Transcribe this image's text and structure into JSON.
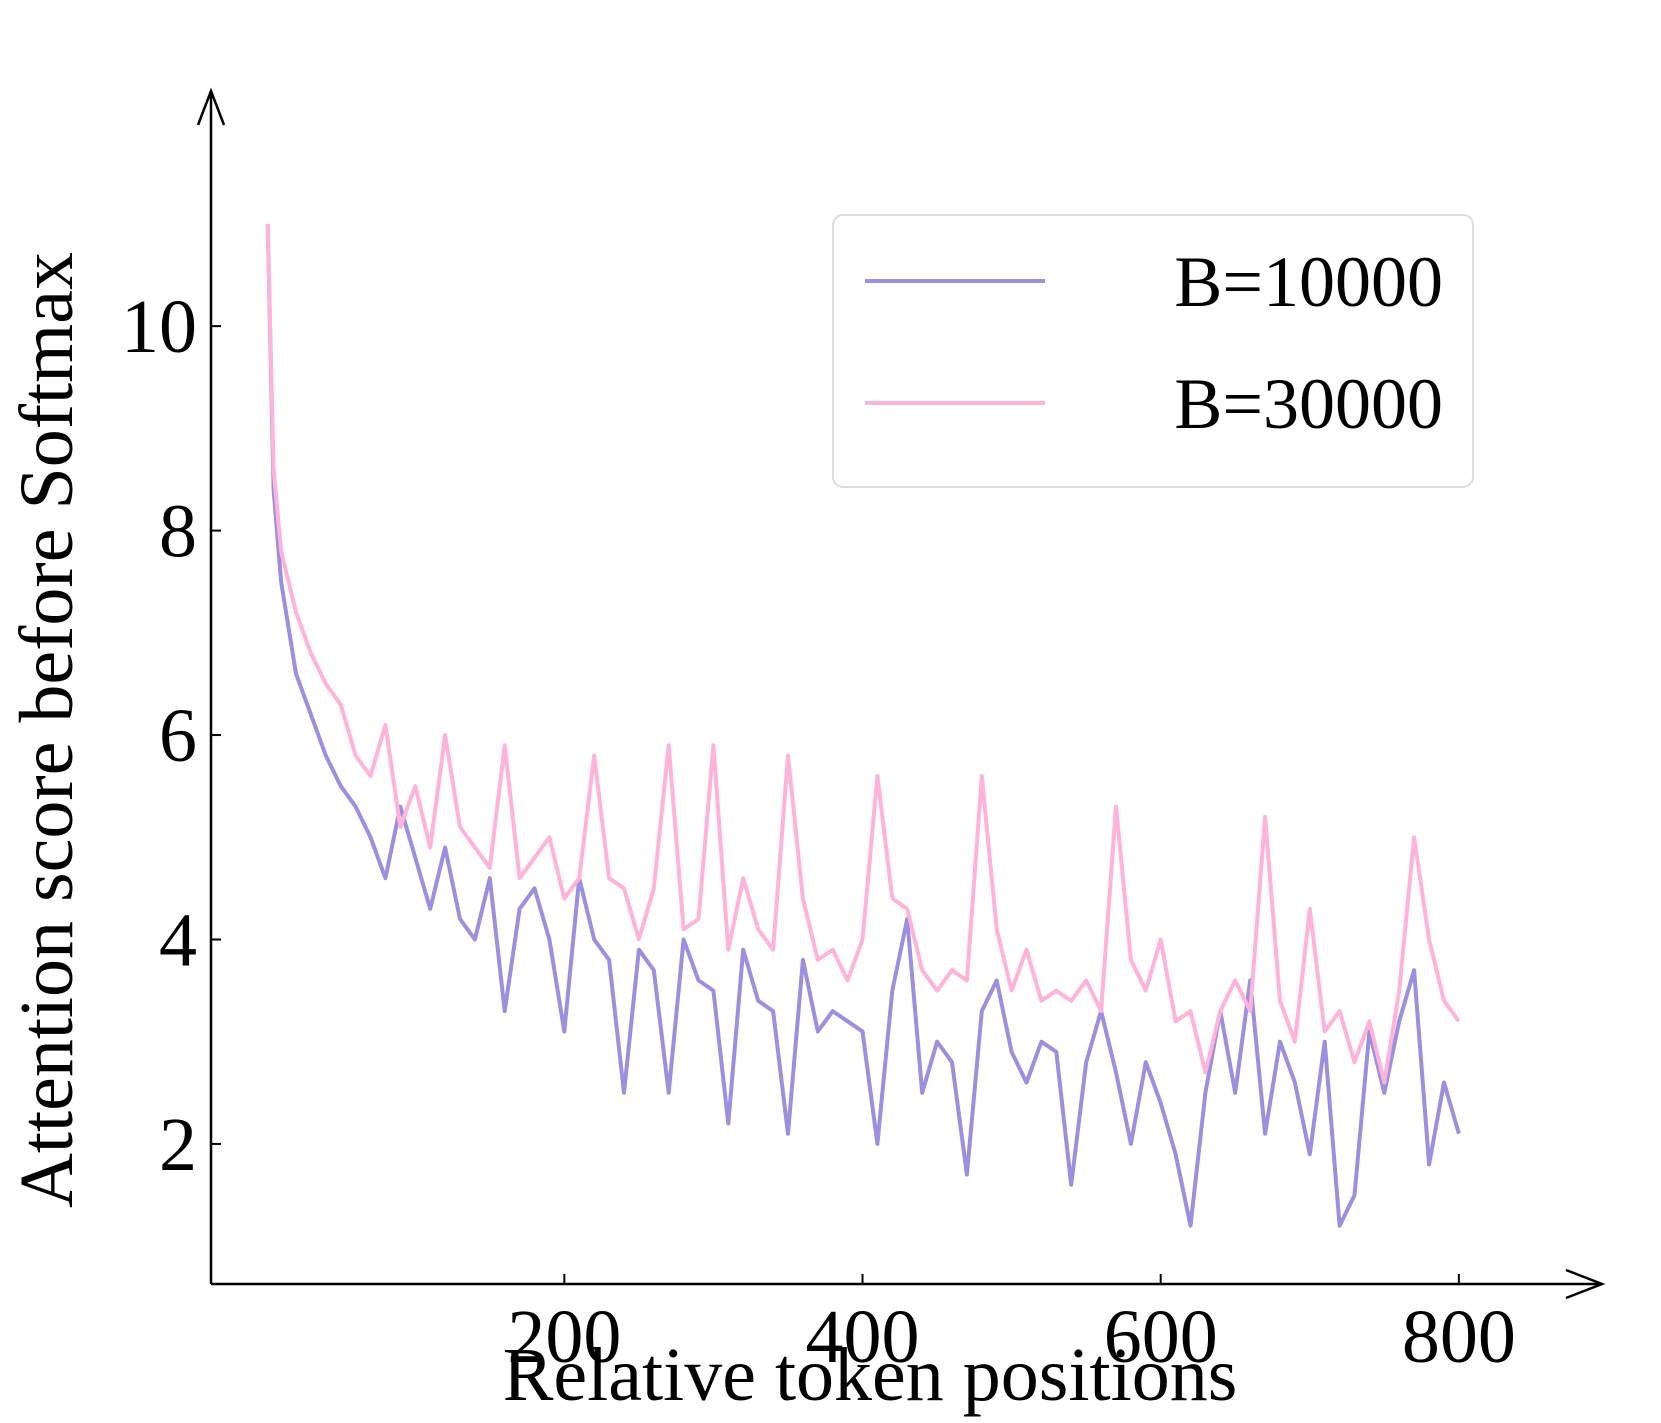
{
  "chart_data": {
    "type": "line",
    "xlabel": "Relative token positions",
    "ylabel": "Attention score before Softmax",
    "x": [
      1,
      5,
      10,
      20,
      30,
      40,
      50,
      60,
      70,
      80,
      90,
      100,
      110,
      120,
      130,
      140,
      150,
      160,
      170,
      180,
      190,
      200,
      210,
      220,
      230,
      240,
      250,
      260,
      270,
      280,
      290,
      300,
      310,
      320,
      330,
      340,
      350,
      360,
      370,
      380,
      390,
      400,
      410,
      420,
      430,
      440,
      450,
      460,
      470,
      480,
      490,
      500,
      510,
      520,
      530,
      540,
      550,
      560,
      570,
      580,
      590,
      600,
      610,
      620,
      630,
      640,
      650,
      660,
      670,
      680,
      690,
      700,
      710,
      720,
      730,
      740,
      750,
      760,
      770,
      780,
      790,
      800
    ],
    "series": [
      {
        "name": "B=10000",
        "color": "#9b8fdf",
        "values": [
          11.0,
          8.4,
          7.5,
          6.6,
          6.2,
          5.8,
          5.5,
          5.3,
          5.0,
          4.6,
          5.3,
          4.8,
          4.3,
          4.9,
          4.2,
          4.0,
          4.6,
          3.3,
          4.3,
          4.5,
          4.0,
          3.1,
          4.6,
          4.0,
          3.8,
          2.5,
          3.9,
          3.7,
          2.5,
          4.0,
          3.6,
          3.5,
          2.2,
          3.9,
          3.4,
          3.3,
          2.1,
          3.8,
          3.1,
          3.3,
          3.2,
          3.1,
          2.0,
          3.5,
          4.2,
          2.5,
          3.0,
          2.8,
          1.7,
          3.3,
          3.6,
          2.9,
          2.6,
          3.0,
          2.9,
          1.6,
          2.8,
          3.3,
          2.7,
          2.0,
          2.8,
          2.4,
          1.9,
          1.2,
          2.5,
          3.3,
          2.5,
          3.6,
          2.1,
          3.0,
          2.6,
          1.9,
          3.0,
          1.2,
          1.5,
          3.1,
          2.5,
          3.2,
          3.7,
          1.8,
          2.6,
          2.1
        ]
      },
      {
        "name": "B=30000",
        "color": "#ffb3d9",
        "values": [
          11.0,
          8.6,
          7.8,
          7.2,
          6.8,
          6.5,
          6.3,
          5.8,
          5.6,
          6.1,
          5.1,
          5.5,
          4.9,
          6.0,
          5.1,
          4.9,
          4.7,
          5.9,
          4.6,
          4.8,
          5.0,
          4.4,
          4.6,
          5.8,
          4.6,
          4.5,
          4.0,
          4.5,
          5.9,
          4.1,
          4.2,
          5.9,
          3.9,
          4.6,
          4.1,
          3.9,
          5.8,
          4.4,
          3.8,
          3.9,
          3.6,
          4.0,
          5.6,
          4.4,
          4.3,
          3.7,
          3.5,
          3.7,
          3.6,
          5.6,
          4.1,
          3.5,
          3.9,
          3.4,
          3.5,
          3.4,
          3.6,
          3.3,
          5.3,
          3.8,
          3.5,
          4.0,
          3.2,
          3.3,
          2.7,
          3.3,
          3.6,
          3.3,
          5.2,
          3.4,
          3.0,
          4.3,
          3.1,
          3.3,
          2.8,
          3.2,
          2.6,
          3.5,
          5.0,
          4.0,
          3.4,
          3.2
        ]
      }
    ],
    "xlim": [
      -37,
      896
    ],
    "ylim": [
      0.63,
      12.3
    ],
    "xticks": [
      200,
      400,
      600,
      800
    ],
    "yticks": [
      2,
      4,
      6,
      8,
      10
    ],
    "legend": "upper right"
  }
}
